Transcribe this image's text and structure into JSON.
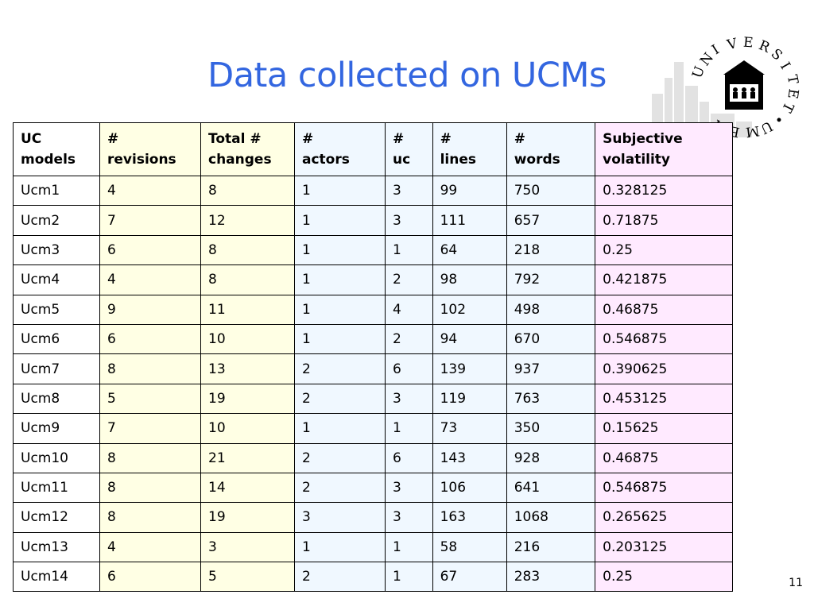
{
  "slide": {
    "title": "Data collected on UCMs",
    "page_number": "11"
  },
  "logo": {
    "letters": [
      "U",
      "N",
      "I",
      "V",
      "E",
      "R",
      "S",
      "I",
      "T",
      "E",
      "T",
      "•",
      "U",
      "M",
      "E",
      "A"
    ]
  },
  "table": {
    "headers": [
      [
        "UC",
        "models"
      ],
      [
        "#",
        "revisions"
      ],
      [
        "Total #",
        "changes"
      ],
      [
        "#",
        "actors"
      ],
      [
        "#",
        "uc"
      ],
      [
        "#",
        "lines"
      ],
      [
        "#",
        "words"
      ],
      [
        "Subjective",
        "volatility"
      ]
    ],
    "rows": [
      [
        "Ucm1",
        "4",
        "8",
        "1",
        "3",
        "99",
        "750",
        "0.328125"
      ],
      [
        "Ucm2",
        "7",
        "12",
        "1",
        "3",
        "111",
        "657",
        "0.71875"
      ],
      [
        "Ucm3",
        "6",
        "8",
        "1",
        "1",
        "64",
        "218",
        "0.25"
      ],
      [
        "Ucm4",
        "4",
        "8",
        "1",
        "2",
        "98",
        "792",
        "0.421875"
      ],
      [
        "Ucm5",
        "9",
        "11",
        "1",
        "4",
        "102",
        "498",
        "0.46875"
      ],
      [
        "Ucm6",
        "6",
        "10",
        "1",
        "2",
        "94",
        "670",
        "0.546875"
      ],
      [
        "Ucm7",
        "8",
        "13",
        "2",
        "6",
        "139",
        "937",
        "0.390625"
      ],
      [
        "Ucm8",
        "5",
        "19",
        "2",
        "3",
        "119",
        "763",
        "0.453125"
      ],
      [
        "Ucm9",
        "7",
        "10",
        "1",
        "1",
        "73",
        "350",
        "0.15625"
      ],
      [
        "Ucm10",
        "8",
        "21",
        "2",
        "6",
        "143",
        "928",
        "0.46875"
      ],
      [
        "Ucm11",
        "8",
        "14",
        "2",
        "3",
        "106",
        "641",
        "0.546875"
      ],
      [
        "Ucm12",
        "8",
        "19",
        "3",
        "3",
        "163",
        "1068",
        "0.265625"
      ],
      [
        "Ucm13",
        "4",
        "3",
        "1",
        "1",
        "58",
        "216",
        "0.203125"
      ],
      [
        "Ucm14",
        "6",
        "5",
        "2",
        "1",
        "67",
        "283",
        "0.25"
      ]
    ]
  }
}
